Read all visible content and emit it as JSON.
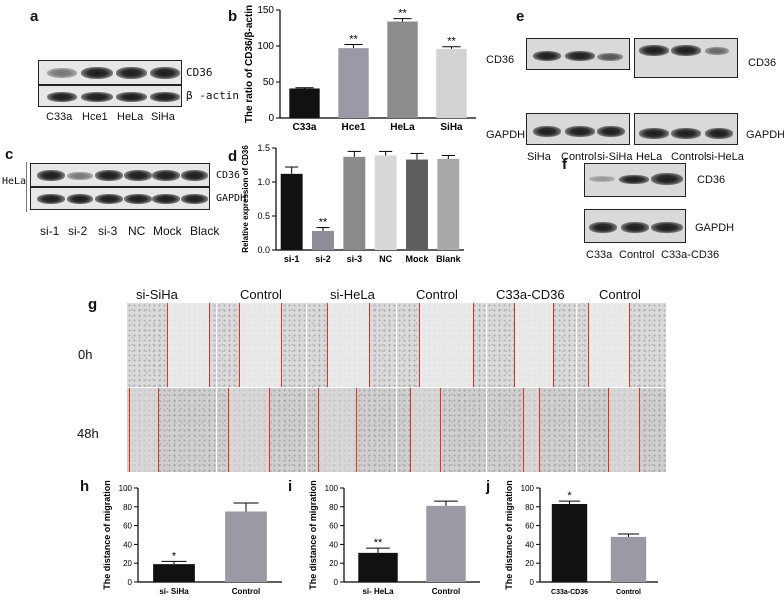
{
  "panel_letters": [
    "a",
    "b",
    "c",
    "d",
    "e",
    "f",
    "g",
    "h",
    "i",
    "j"
  ],
  "panel_a": {
    "lanes": [
      "C33a",
      "Hce1",
      "HeLa",
      "SiHa"
    ],
    "row_labels": [
      "CD36",
      "β -actin"
    ]
  },
  "panel_c": {
    "side_label": "HeLa",
    "lanes": [
      "si-1",
      "si-2",
      "si-3",
      "NC",
      "Mock",
      "Black"
    ],
    "row_labels": [
      "CD36",
      "GAPDH"
    ]
  },
  "panel_e": {
    "left_lanes": [
      "SiHa",
      "Control",
      "si-SiHa"
    ],
    "right_lanes": [
      "HeLa",
      "Control",
      "si-HeLa"
    ],
    "row_label_cd36_left": "CD36",
    "row_label_cd36_right": "CD36",
    "row_label_gapdh_left": "GAPDH",
    "row_label_gapdh_right": "GAPDH"
  },
  "panel_f": {
    "lanes": [
      "C33a",
      "Control",
      "C33a-CD36"
    ],
    "row_labels": [
      "CD36",
      "GAPDH"
    ]
  },
  "panel_g": {
    "columns": [
      "si-SiHa",
      "Control",
      "si-HeLa",
      "Control",
      "C33a-CD36",
      "Control"
    ],
    "rows": [
      "0h",
      "48h"
    ]
  },
  "chart_data": [
    {
      "panel": "b",
      "type": "bar",
      "categories": [
        "C33a",
        "Hce1",
        "HeLa",
        "SiHa"
      ],
      "values": [
        41,
        97,
        134,
        96
      ],
      "errors": [
        1,
        5,
        4,
        3
      ],
      "significance": [
        "",
        "**",
        "**",
        "**"
      ],
      "colors": [
        "#111111",
        "#9a9aa6",
        "#8c8c8c",
        "#d2d2d2"
      ],
      "ylabel": "The ratio of CD36/β-actin",
      "ylim": [
        0,
        150
      ],
      "yticks": [
        0,
        50,
        100,
        150
      ]
    },
    {
      "panel": "d",
      "type": "bar",
      "categories": [
        "si-1",
        "si-2",
        "si-3",
        "NC",
        "Mock",
        "Blank"
      ],
      "values": [
        1.12,
        0.28,
        1.37,
        1.39,
        1.33,
        1.34
      ],
      "errors": [
        0.1,
        0.05,
        0.08,
        0.06,
        0.09,
        0.05
      ],
      "significance": [
        "",
        "**",
        "",
        "",
        "",
        ""
      ],
      "colors": [
        "#111111",
        "#8e8e9a",
        "#8a8a8a",
        "#d8d8d8",
        "#5e5e5e",
        "#a9a9a9"
      ],
      "ylabel": "Relative expression of CD36",
      "ylim": [
        0.0,
        1.5
      ],
      "yticks": [
        0.0,
        0.5,
        1.0,
        1.5
      ]
    },
    {
      "panel": "h",
      "type": "bar",
      "categories": [
        "si- SiHa",
        "Control"
      ],
      "values": [
        19,
        75
      ],
      "errors": [
        3,
        9
      ],
      "significance": [
        "*",
        ""
      ],
      "colors": [
        "#111111",
        "#9a9aa4"
      ],
      "ylabel": "The distance of migration",
      "ylim": [
        0,
        100
      ],
      "yticks": [
        0,
        20,
        40,
        60,
        80,
        100
      ]
    },
    {
      "panel": "i",
      "type": "bar",
      "categories": [
        "si- HeLa",
        "Control"
      ],
      "values": [
        31,
        81
      ],
      "errors": [
        5,
        5
      ],
      "significance": [
        "**",
        ""
      ],
      "colors": [
        "#111111",
        "#9a9aa4"
      ],
      "ylabel": "The distance of migration",
      "ylim": [
        0,
        100
      ],
      "yticks": [
        0,
        20,
        40,
        60,
        80,
        100
      ]
    },
    {
      "panel": "j",
      "type": "bar",
      "categories": [
        "C33a-CD36",
        "Control"
      ],
      "values": [
        83,
        48
      ],
      "errors": [
        3,
        3
      ],
      "significance": [
        "*",
        ""
      ],
      "colors": [
        "#111111",
        "#9a9aa4"
      ],
      "ylabel": "The distance of migration",
      "ylim": [
        0,
        100
      ],
      "yticks": [
        0,
        20,
        40,
        60,
        80,
        100
      ]
    }
  ]
}
